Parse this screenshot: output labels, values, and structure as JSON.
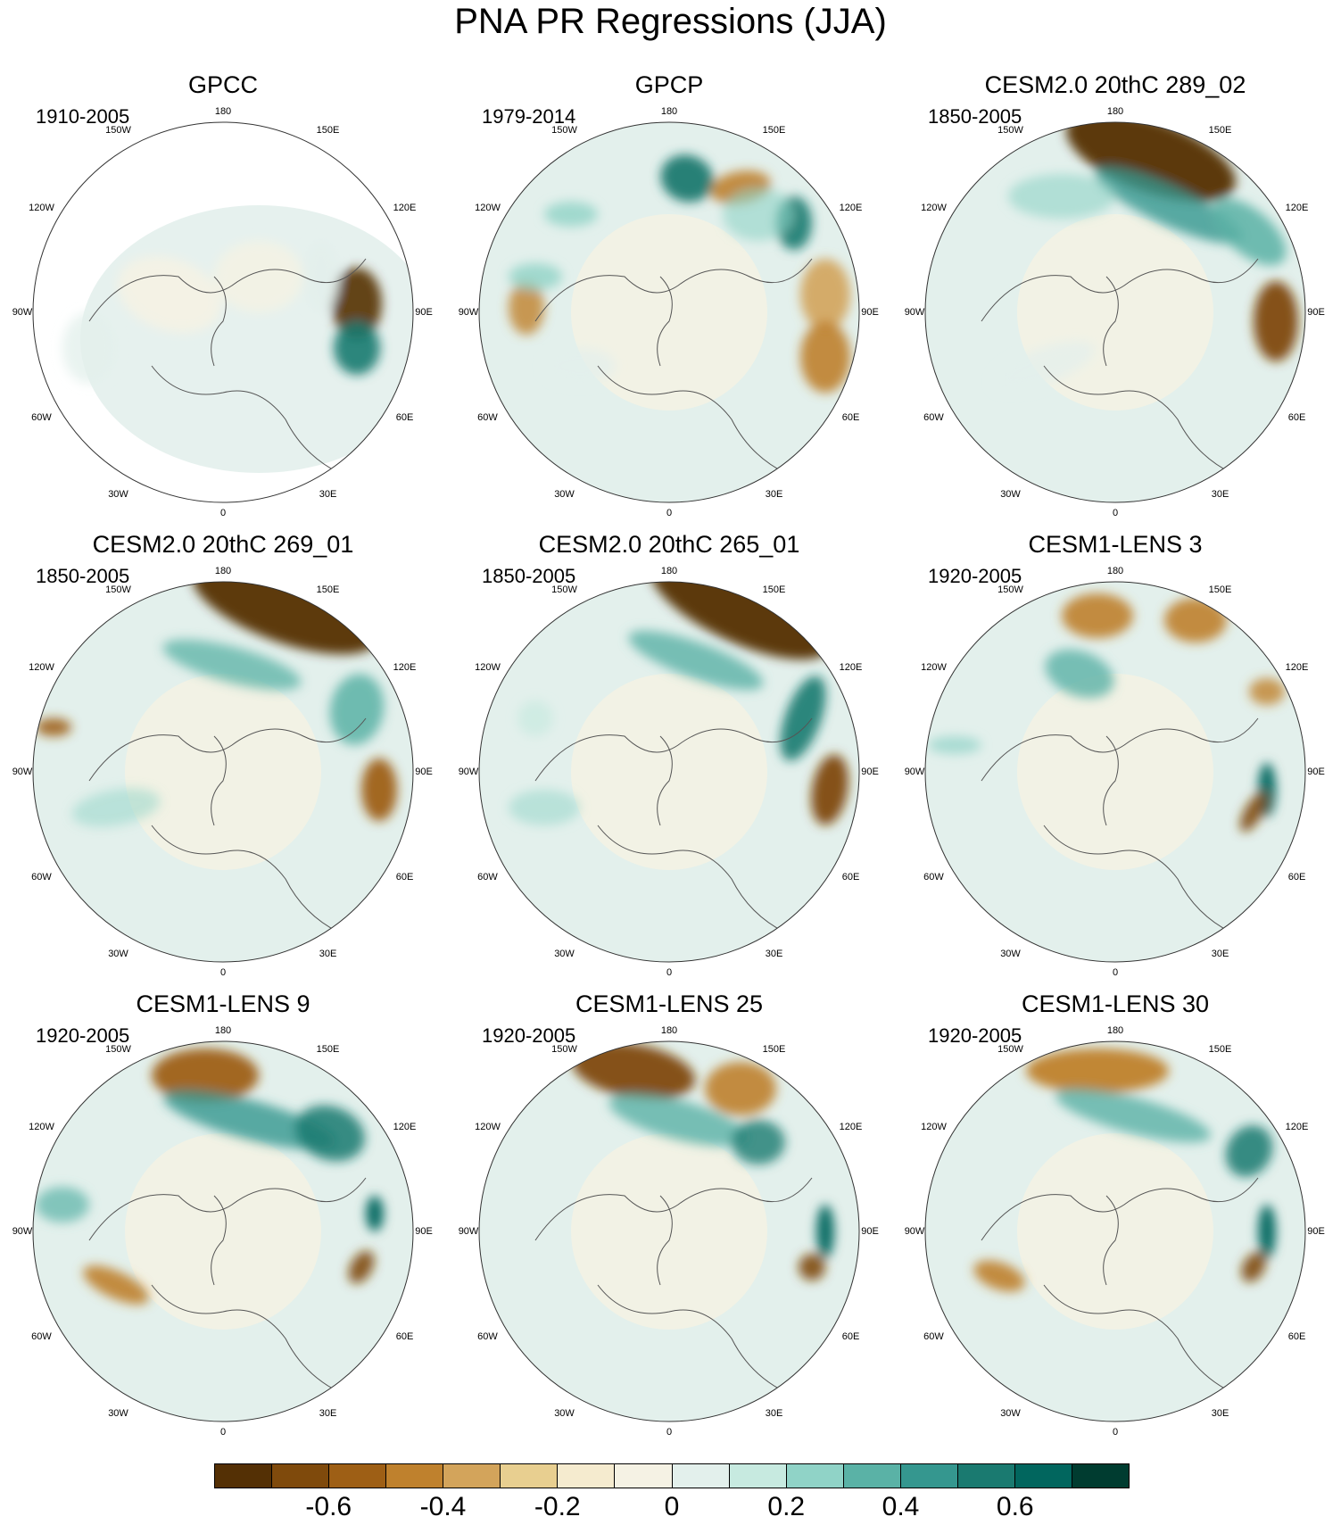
{
  "title": "PNA PR Regressions (JJA)",
  "panels": [
    {
      "title": "GPCC",
      "period": "1910-2005",
      "masked": true
    },
    {
      "title": "GPCP",
      "period": "1979-2014"
    },
    {
      "title": "CESM2.0 20thC 289_02",
      "period": "1850-2005"
    },
    {
      "title": "CESM2.0 20thC 269_01",
      "period": "1850-2005"
    },
    {
      "title": "CESM2.0 20thC 265_01",
      "period": "1850-2005"
    },
    {
      "title": "CESM1-LENS 3",
      "period": "1920-2005"
    },
    {
      "title": "CESM1-LENS 9",
      "period": "1920-2005"
    },
    {
      "title": "CESM1-LENS 25",
      "period": "1920-2005"
    },
    {
      "title": "CESM1-LENS 30",
      "period": "1920-2005"
    }
  ],
  "longitude_labels": [
    "180",
    "150E",
    "120E",
    "90E",
    "60E",
    "30E",
    "0",
    "30W",
    "60W",
    "90W",
    "120W",
    "150W"
  ],
  "colorbar": {
    "colors": [
      "#543005",
      "#7f4a0c",
      "#9e5f15",
      "#bf812d",
      "#d3a45b",
      "#e8cf90",
      "#f5ebcf",
      "#f5f2e4",
      "#e3f0ec",
      "#c7eae0",
      "#90d3c7",
      "#5ab2a6",
      "#35978f",
      "#1a7a70",
      "#01665e",
      "#003c30"
    ],
    "tick_labels": [
      "-0.6",
      "-0.4",
      "-0.2",
      "0",
      "0.2",
      "0.4",
      "0.6"
    ]
  }
}
